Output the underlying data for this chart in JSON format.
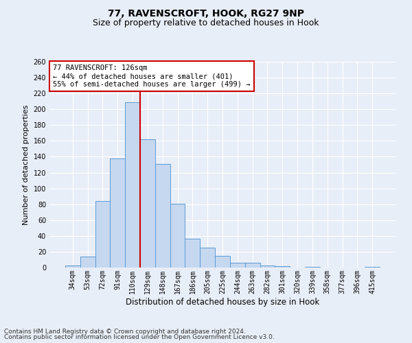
{
  "title": "77, RAVENSCROFT, HOOK, RG27 9NP",
  "subtitle": "Size of property relative to detached houses in Hook",
  "xlabel": "Distribution of detached houses by size in Hook",
  "ylabel": "Number of detached properties",
  "categories": [
    "34sqm",
    "53sqm",
    "72sqm",
    "91sqm",
    "110sqm",
    "129sqm",
    "148sqm",
    "167sqm",
    "186sqm",
    "205sqm",
    "225sqm",
    "244sqm",
    "263sqm",
    "282sqm",
    "301sqm",
    "320sqm",
    "339sqm",
    "358sqm",
    "377sqm",
    "396sqm",
    "415sqm"
  ],
  "values": [
    3,
    14,
    84,
    138,
    209,
    162,
    131,
    81,
    36,
    25,
    15,
    6,
    6,
    3,
    2,
    0,
    1,
    0,
    0,
    0,
    1
  ],
  "bar_color": "#c5d8f0",
  "bar_edge_color": "#5b9bd5",
  "vline_x_index": 5,
  "vline_color": "#cc0000",
  "annotation_text": "77 RAVENSCROFT: 126sqm\n← 44% of detached houses are smaller (401)\n55% of semi-detached houses are larger (499) →",
  "annotation_box_color": "#ffffff",
  "annotation_box_edge": "#cc0000",
  "bg_color": "#e8eef7",
  "plot_bg_color": "#e8eef7",
  "grid_color": "#ffffff",
  "ylim": [
    0,
    260
  ],
  "yticks": [
    0,
    20,
    40,
    60,
    80,
    100,
    120,
    140,
    160,
    180,
    200,
    220,
    240,
    260
  ],
  "footer1": "Contains HM Land Registry data © Crown copyright and database right 2024.",
  "footer2": "Contains public sector information licensed under the Open Government Licence v3.0.",
  "title_fontsize": 10,
  "subtitle_fontsize": 9,
  "xlabel_fontsize": 8.5,
  "ylabel_fontsize": 8,
  "tick_fontsize": 7,
  "annotation_fontsize": 7.5,
  "footer_fontsize": 6.5
}
